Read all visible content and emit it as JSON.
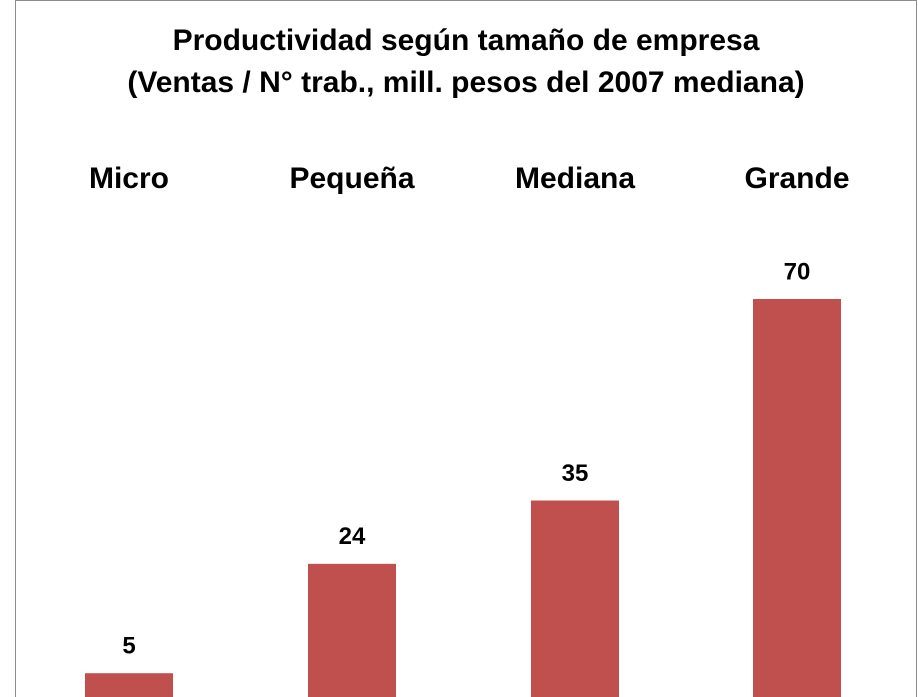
{
  "chart_data": {
    "type": "bar",
    "title": "Productividad según tamaño de empresa",
    "subtitle": "(Ventas / N° trab., mill. pesos del 2007 mediana)",
    "categories": [
      "Micro",
      "Pequeña",
      "Mediana",
      "Grande"
    ],
    "values": [
      5,
      24,
      35,
      70
    ],
    "color": "#c0504d"
  }
}
